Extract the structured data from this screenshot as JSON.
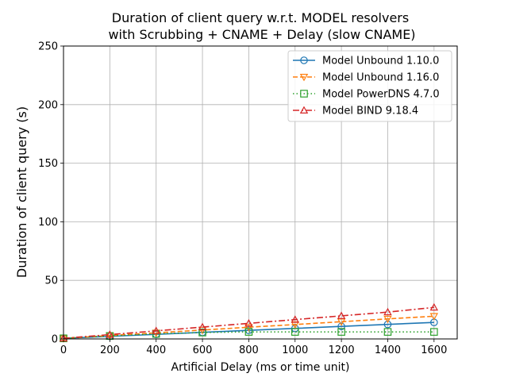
{
  "chart_data": {
    "type": "line",
    "title": [
      "Duration of client query w.r.t. MODEL resolvers",
      "with Scrubbing + CNAME + Delay (slow CNAME)"
    ],
    "xlabel": "Artificial Delay (ms or time unit)",
    "ylabel": "Duration of client query (s)",
    "xlim": [
      0,
      1700
    ],
    "ylim": [
      0,
      250
    ],
    "xticks": [
      0,
      200,
      400,
      600,
      800,
      1000,
      1200,
      1400,
      1600
    ],
    "yticks": [
      0,
      50,
      100,
      150,
      200,
      250
    ],
    "grid": true,
    "legend_position": "top-right",
    "x": [
      0,
      200,
      400,
      600,
      800,
      1000,
      1200,
      1400,
      1600
    ],
    "series": [
      {
        "name": "Model Unbound 1.10.0",
        "color": "#1f77b4",
        "marker": "circle",
        "dash": "solid",
        "values": [
          0.5,
          2.2,
          3.9,
          5.6,
          7.3,
          9.0,
          10.7,
          12.4,
          14.1
        ]
      },
      {
        "name": "Model Unbound 1.16.0",
        "color": "#ff7f0e",
        "marker": "triangle-down",
        "dash": "dashed",
        "values": [
          0.5,
          2.9,
          5.2,
          7.6,
          10.0,
          12.3,
          14.7,
          17.1,
          19.4
        ]
      },
      {
        "name": "Model PowerDNS 4.7.0",
        "color": "#2ca02c",
        "marker": "square",
        "dash": "dotted",
        "values": [
          0.5,
          2.5,
          4.3,
          5.5,
          6.0,
          6.0,
          6.0,
          6.0,
          6.0
        ]
      },
      {
        "name": "Model BIND 9.18.4",
        "color": "#d62728",
        "marker": "triangle-up",
        "dash": "dashdot",
        "values": [
          0.5,
          3.7,
          6.9,
          10.1,
          13.3,
          16.5,
          19.7,
          22.9,
          26.9
        ]
      }
    ]
  }
}
